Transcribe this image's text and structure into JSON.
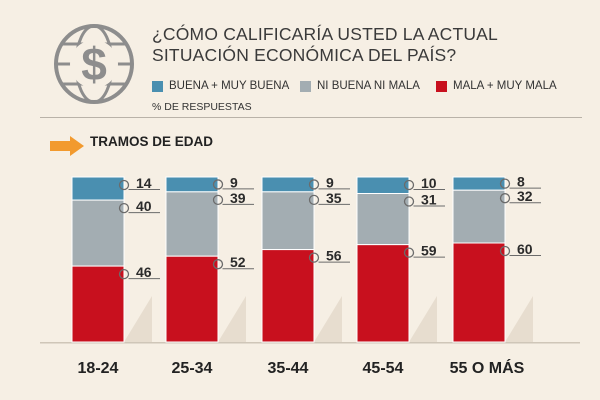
{
  "header": {
    "title_line1": "¿CÓMO CALIFICARÍA USTED LA ACTUAL",
    "title_line2": "SITUACIÓN ECONÓMICA DEL PAÍS?",
    "units_note": "% DE RESPUESTAS",
    "section_label": "TRAMOS DE EDAD"
  },
  "legend": [
    {
      "label": "BUENA + MUY BUENA",
      "color": "#4a8fb0"
    },
    {
      "label": "NI BUENA NI MALA",
      "color": "#a3adb2"
    },
    {
      "label": "MALA + MUY MALA",
      "color": "#c8101e"
    }
  ],
  "chart_data": {
    "type": "bar",
    "stacked": true,
    "categories": [
      "18-24",
      "25-34",
      "35-44",
      "45-54",
      "55 O MÁS"
    ],
    "series": [
      {
        "name": "BUENA + MUY BUENA",
        "color": "#4a8fb0",
        "values": [
          14,
          9,
          9,
          10,
          8
        ]
      },
      {
        "name": "NI BUENA NI MALA",
        "color": "#a3adb2",
        "values": [
          40,
          39,
          35,
          31,
          32
        ]
      },
      {
        "name": "MALA + MUY MALA",
        "color": "#c8101e",
        "values": [
          46,
          52,
          56,
          59,
          60
        ]
      }
    ],
    "ylim": [
      0,
      100
    ],
    "grid": false
  }
}
